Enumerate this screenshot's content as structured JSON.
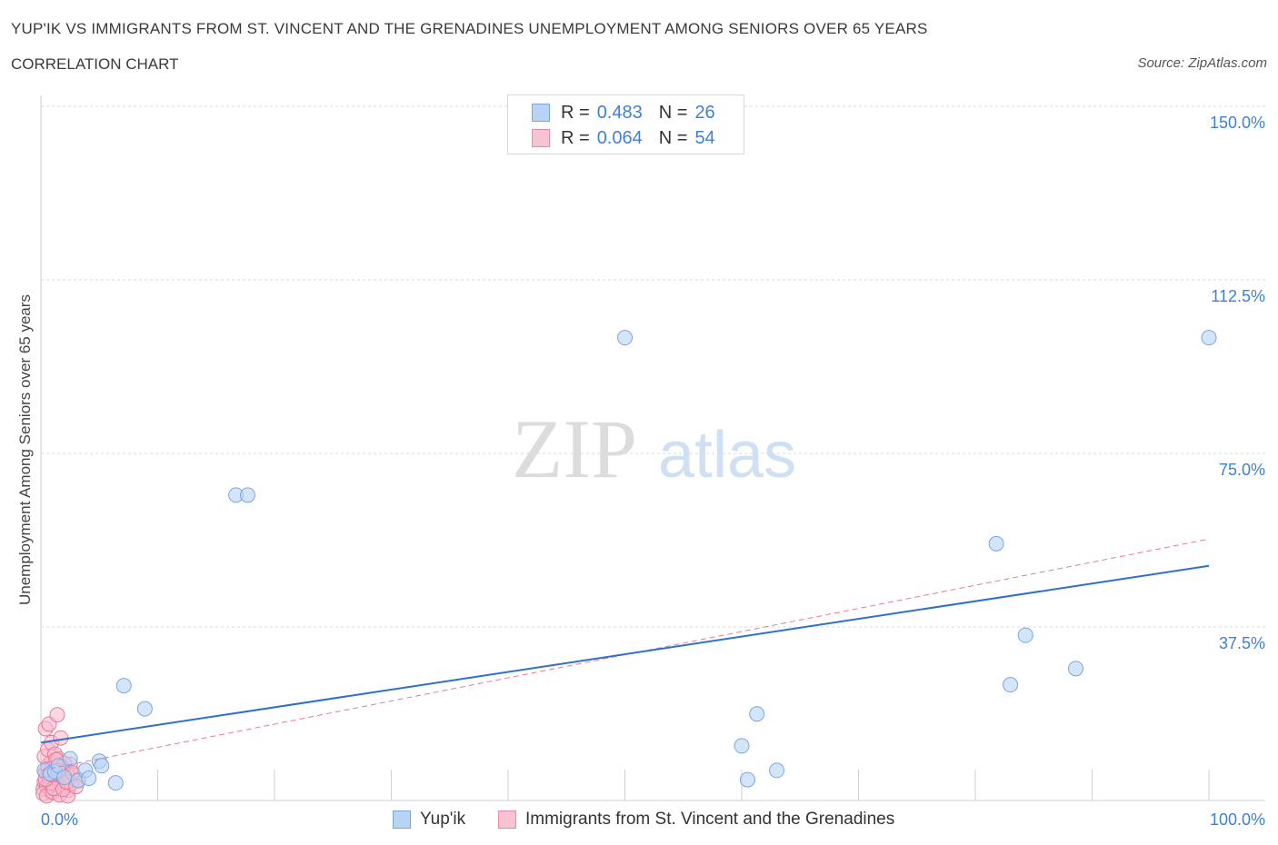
{
  "header": {
    "title": "YUP'IK VS IMMIGRANTS FROM ST. VINCENT AND THE GRENADINES UNEMPLOYMENT AMONG SENIORS OVER 65 YEARS",
    "subtitle": "CORRELATION CHART",
    "source": "Source: ZipAtlas.com"
  },
  "watermark": {
    "zip": "ZIP",
    "atlas": "atlas"
  },
  "legend": {
    "rows": [
      {
        "r_label": "R =",
        "r_value": "0.483",
        "n_label": "N =",
        "n_value": "26"
      },
      {
        "r_label": "R =",
        "r_value": "0.064",
        "n_label": "N =",
        "n_value": "54"
      }
    ]
  },
  "colors": {
    "blue_fill": "#b9d3f5",
    "blue_stroke": "#7aa6e0",
    "blue_line": "#2f6fcf",
    "pink_fill": "#f7b9cc",
    "pink_stroke": "#e8799b",
    "pink_line": "#e57a9a",
    "value_text": "#3f7fd6",
    "grid": "#d9d9d9"
  },
  "chart_data": {
    "type": "scatter",
    "title": "YUP'IK VS IMMIGRANTS FROM ST. VINCENT AND THE GRENADINES UNEMPLOYMENT AMONG SENIORS OVER 65 YEARS",
    "xlabel": "",
    "ylabel": "Unemployment Among Seniors over 65 years",
    "xlim": [
      0,
      100
    ],
    "ylim": [
      0,
      150
    ],
    "x_tick_labels": [
      "0.0%",
      "100.0%"
    ],
    "y_ticks": [
      37.5,
      75.0,
      112.5,
      150.0
    ],
    "y_tick_labels": [
      "37.5%",
      "75.0%",
      "112.5%",
      "150.0%"
    ],
    "grid": true,
    "legend_position": "bottom",
    "series": [
      {
        "name": "Yup'ik",
        "color": "#b9d3f5",
        "R": 0.483,
        "N": 26,
        "trend": {
          "x": [
            0,
            100
          ],
          "y": [
            12.5,
            50.7
          ],
          "style": "solid"
        },
        "points": [
          [
            0.3,
            6.5
          ],
          [
            0.8,
            5.8
          ],
          [
            1.2,
            6.2
          ],
          [
            1.5,
            7.5
          ],
          [
            2.0,
            5.0
          ],
          [
            2.5,
            9.0
          ],
          [
            3.2,
            4.3
          ],
          [
            3.8,
            6.5
          ],
          [
            4.1,
            4.8
          ],
          [
            5.0,
            8.5
          ],
          [
            5.2,
            7.5
          ],
          [
            6.4,
            3.8
          ],
          [
            7.1,
            24.8
          ],
          [
            8.9,
            19.8
          ],
          [
            16.7,
            66.0
          ],
          [
            17.7,
            66.0
          ],
          [
            50.0,
            100.0
          ],
          [
            60.0,
            11.8
          ],
          [
            60.5,
            4.5
          ],
          [
            61.3,
            18.7
          ],
          [
            63.0,
            6.5
          ],
          [
            81.8,
            55.5
          ],
          [
            84.3,
            35.7
          ],
          [
            88.6,
            28.5
          ],
          [
            83.0,
            25.0
          ],
          [
            100.0,
            100.0
          ]
        ]
      },
      {
        "name": "Immigrants from St. Vincent and the Grenadines",
        "color": "#f7b9cc",
        "R": 0.064,
        "N": 54,
        "trend": {
          "x": [
            0,
            100
          ],
          "y": [
            6.5,
            56.5
          ],
          "style": "dashed"
        },
        "points": [
          [
            0.2,
            2.5
          ],
          [
            0.3,
            4.0
          ],
          [
            0.4,
            6.0
          ],
          [
            0.5,
            3.0
          ],
          [
            0.6,
            7.5
          ],
          [
            0.7,
            5.0
          ],
          [
            0.8,
            2.0
          ],
          [
            0.9,
            8.5
          ],
          [
            1.0,
            4.5
          ],
          [
            1.1,
            6.5
          ],
          [
            1.2,
            3.5
          ],
          [
            1.3,
            5.5
          ],
          [
            1.4,
            7.0
          ],
          [
            1.5,
            2.8
          ],
          [
            1.6,
            4.2
          ],
          [
            1.7,
            6.8
          ],
          [
            1.8,
            3.2
          ],
          [
            1.9,
            5.8
          ],
          [
            2.0,
            4.8
          ],
          [
            2.1,
            3.0
          ],
          [
            2.2,
            6.2
          ],
          [
            2.3,
            2.2
          ],
          [
            2.4,
            5.2
          ],
          [
            2.5,
            7.8
          ],
          [
            0.3,
            9.5
          ],
          [
            0.6,
            11.0
          ],
          [
            0.9,
            12.5
          ],
          [
            1.2,
            10.0
          ],
          [
            1.5,
            9.0
          ],
          [
            0.4,
            15.5
          ],
          [
            0.7,
            16.5
          ],
          [
            1.4,
            18.5
          ],
          [
            1.7,
            13.5
          ],
          [
            2.0,
            8.0
          ],
          [
            2.8,
            5.5
          ],
          [
            3.2,
            4.5
          ],
          [
            0.2,
            1.5
          ],
          [
            0.5,
            1.0
          ],
          [
            1.0,
            1.8
          ],
          [
            1.6,
            1.2
          ],
          [
            2.3,
            1.0
          ],
          [
            0.8,
            3.8
          ],
          [
            1.1,
            2.6
          ],
          [
            1.3,
            8.8
          ],
          [
            1.9,
            2.4
          ],
          [
            2.6,
            3.6
          ],
          [
            0.4,
            4.6
          ],
          [
            0.6,
            6.8
          ],
          [
            1.8,
            7.2
          ],
          [
            2.2,
            4.0
          ],
          [
            2.7,
            6.0
          ],
          [
            0.9,
            5.6
          ],
          [
            1.5,
            6.4
          ],
          [
            3.0,
            3.0
          ]
        ]
      }
    ]
  },
  "bottom_legend": {
    "items": [
      "Yup'ik",
      "Immigrants from St. Vincent and the Grenadines"
    ]
  }
}
